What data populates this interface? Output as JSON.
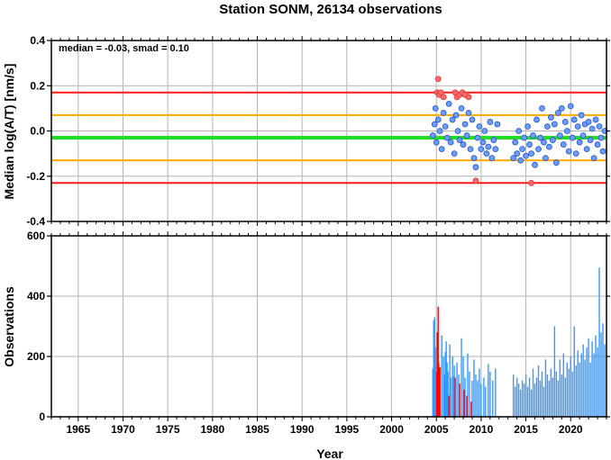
{
  "title": "Station SONM, 26134 observations",
  "xlabel": "Year",
  "x_ticks": [
    "1965",
    "1970",
    "1975",
    "1980",
    "1985",
    "1990",
    "1995",
    "2000",
    "2005",
    "2010",
    "2015",
    "2020"
  ],
  "colors": {
    "red": "#ff1a1a",
    "orange": "#ffaa00",
    "green": "#22dd22",
    "blue_point": "#6b9cff",
    "red_point": "#ff6a6a",
    "blue_bar": "#3399ff",
    "red_bar": "#ff0000"
  },
  "chart_data": [
    {
      "type": "scatter",
      "ylabel": "Median log(A/T) [nm/s]",
      "xlim": [
        1962,
        2024
      ],
      "ylim": [
        -0.4,
        0.4
      ],
      "y_ticks": [
        "0.4",
        "0.2",
        "0.0",
        "-0.2",
        "-0.4"
      ],
      "annotation": "median = -0.03, smad = 0.10",
      "grid": true,
      "hlines": [
        {
          "y": 0.17,
          "color": "red"
        },
        {
          "y": 0.07,
          "color": "orange"
        },
        {
          "y": -0.03,
          "color": "green"
        },
        {
          "y": -0.13,
          "color": "orange"
        },
        {
          "y": -0.23,
          "color": "red"
        }
      ],
      "series": [
        {
          "color": "red",
          "points": [
            [
              2005.1,
              0.17
            ],
            [
              2005.2,
              0.23
            ],
            [
              2005.3,
              0.16
            ],
            [
              2005.5,
              0.17
            ],
            [
              2005.8,
              0.15
            ],
            [
              2007.1,
              0.17
            ],
            [
              2007.3,
              0.15
            ],
            [
              2007.6,
              0.16
            ],
            [
              2007.9,
              0.17
            ],
            [
              2008.2,
              0.16
            ],
            [
              2008.6,
              0.15
            ],
            [
              2009.4,
              -0.22
            ],
            [
              2015.6,
              -0.23
            ]
          ]
        },
        {
          "color": "blue",
          "points": [
            [
              2004.6,
              -0.02
            ],
            [
              2004.8,
              0.03
            ],
            [
              2004.9,
              0.1
            ],
            [
              2005.0,
              -0.05
            ],
            [
              2005.2,
              0.05
            ],
            [
              2005.4,
              0.0
            ],
            [
              2005.6,
              -0.08
            ],
            [
              2005.8,
              0.08
            ],
            [
              2006.0,
              0.02
            ],
            [
              2006.2,
              -0.03
            ],
            [
              2006.4,
              0.12
            ],
            [
              2006.6,
              -0.05
            ],
            [
              2006.8,
              0.05
            ],
            [
              2007.0,
              -0.1
            ],
            [
              2007.2,
              0.07
            ],
            [
              2007.4,
              0.0
            ],
            [
              2007.6,
              -0.04
            ],
            [
              2007.8,
              0.1
            ],
            [
              2008.0,
              -0.06
            ],
            [
              2008.2,
              0.03
            ],
            [
              2008.4,
              -0.02
            ],
            [
              2008.6,
              0.08
            ],
            [
              2008.8,
              -0.08
            ],
            [
              2009.0,
              0.05
            ],
            [
              2009.2,
              -0.12
            ],
            [
              2009.4,
              -0.16
            ],
            [
              2009.6,
              -0.03
            ],
            [
              2009.8,
              0.02
            ],
            [
              2010.0,
              -0.08
            ],
            [
              2010.2,
              -0.05
            ],
            [
              2010.4,
              0.0
            ],
            [
              2010.6,
              -0.1
            ],
            [
              2010.8,
              -0.07
            ],
            [
              2011.0,
              0.04
            ],
            [
              2011.2,
              -0.12
            ],
            [
              2011.4,
              -0.04
            ],
            [
              2011.6,
              -0.08
            ],
            [
              2011.8,
              0.03
            ],
            [
              2013.6,
              -0.12
            ],
            [
              2013.8,
              -0.05
            ],
            [
              2014.0,
              -0.1
            ],
            [
              2014.2,
              0.0
            ],
            [
              2014.4,
              -0.13
            ],
            [
              2014.6,
              -0.08
            ],
            [
              2014.8,
              -0.03
            ],
            [
              2015.0,
              -0.11
            ],
            [
              2015.2,
              0.02
            ],
            [
              2015.4,
              -0.06
            ],
            [
              2015.6,
              -0.1
            ],
            [
              2015.8,
              -0.02
            ],
            [
              2016.0,
              -0.15
            ],
            [
              2016.2,
              0.05
            ],
            [
              2016.4,
              -0.08
            ],
            [
              2016.6,
              -0.03
            ],
            [
              2016.8,
              0.1
            ],
            [
              2017.0,
              -0.05
            ],
            [
              2017.2,
              -0.12
            ],
            [
              2017.4,
              0.02
            ],
            [
              2017.6,
              -0.07
            ],
            [
              2017.8,
              0.06
            ],
            [
              2018.0,
              -0.04
            ],
            [
              2018.2,
              0.03
            ],
            [
              2018.4,
              -0.14
            ],
            [
              2018.6,
              0.08
            ],
            [
              2018.8,
              -0.02
            ],
            [
              2019.0,
              0.1
            ],
            [
              2019.2,
              -0.06
            ],
            [
              2019.4,
              0.04
            ],
            [
              2019.6,
              0.0
            ],
            [
              2019.8,
              -0.09
            ],
            [
              2020.0,
              0.11
            ],
            [
              2020.2,
              -0.03
            ],
            [
              2020.4,
              0.05
            ],
            [
              2020.6,
              -0.1
            ],
            [
              2020.8,
              0.02
            ],
            [
              2021.0,
              -0.05
            ],
            [
              2021.2,
              0.07
            ],
            [
              2021.4,
              -0.02
            ],
            [
              2021.6,
              0.03
            ],
            [
              2021.8,
              -0.08
            ],
            [
              2022.0,
              0.04
            ],
            [
              2022.2,
              -0.04
            ],
            [
              2022.4,
              0.01
            ],
            [
              2022.6,
              -0.12
            ],
            [
              2022.8,
              0.05
            ],
            [
              2023.0,
              -0.06
            ],
            [
              2023.2,
              0.02
            ],
            [
              2023.4,
              -0.03
            ],
            [
              2023.6,
              -0.09
            ],
            [
              2023.8,
              0.0
            ]
          ]
        }
      ]
    },
    {
      "type": "bar",
      "ylabel": "Observations",
      "xlim": [
        1962,
        2024
      ],
      "ylim": [
        0,
        600
      ],
      "y_ticks": [
        "600",
        "400",
        "200",
        "0"
      ],
      "grid": true,
      "series": [
        {
          "color": "blue",
          "bars": [
            [
              2004.6,
              160
            ],
            [
              2004.7,
              320
            ],
            [
              2004.8,
              330
            ],
            [
              2004.9,
              230
            ],
            [
              2005.0,
              150
            ],
            [
              2005.6,
              270
            ],
            [
              2005.8,
              200
            ],
            [
              2005.9,
              140
            ],
            [
              2006.0,
              215
            ],
            [
              2006.1,
              250
            ],
            [
              2006.2,
              180
            ],
            [
              2006.3,
              150
            ],
            [
              2006.5,
              240
            ],
            [
              2006.6,
              130
            ],
            [
              2006.8,
              200
            ],
            [
              2006.9,
              135
            ],
            [
              2007.0,
              170
            ],
            [
              2007.3,
              180
            ],
            [
              2007.5,
              140
            ],
            [
              2007.8,
              260
            ],
            [
              2008.0,
              200
            ],
            [
              2008.2,
              130
            ],
            [
              2008.5,
              210
            ],
            [
              2008.7,
              150
            ],
            [
              2009.0,
              120
            ],
            [
              2009.2,
              190
            ],
            [
              2009.4,
              140
            ],
            [
              2009.6,
              120
            ],
            [
              2009.8,
              160
            ],
            [
              2010.0,
              110
            ],
            [
              2010.3,
              130
            ],
            [
              2010.5,
              100
            ],
            [
              2010.8,
              175
            ],
            [
              2011.0,
              150
            ],
            [
              2011.3,
              120
            ],
            [
              2011.6,
              160
            ],
            [
              2013.6,
              140
            ],
            [
              2013.8,
              100
            ],
            [
              2014.0,
              130
            ],
            [
              2014.2,
              110
            ],
            [
              2014.4,
              90
            ],
            [
              2014.6,
              120
            ],
            [
              2014.8,
              110
            ],
            [
              2015.0,
              140
            ],
            [
              2015.2,
              100
            ],
            [
              2015.4,
              130
            ],
            [
              2015.6,
              90
            ],
            [
              2015.8,
              160
            ],
            [
              2016.0,
              110
            ],
            [
              2016.2,
              130
            ],
            [
              2016.4,
              170
            ],
            [
              2016.6,
              120
            ],
            [
              2016.8,
              150
            ],
            [
              2017.0,
              100
            ],
            [
              2017.2,
              190
            ],
            [
              2017.4,
              140
            ],
            [
              2017.6,
              120
            ],
            [
              2017.8,
              160
            ],
            [
              2018.0,
              130
            ],
            [
              2018.2,
              300
            ],
            [
              2018.4,
              150
            ],
            [
              2018.6,
              120
            ],
            [
              2018.8,
              190
            ],
            [
              2019.0,
              140
            ],
            [
              2019.2,
              210
            ],
            [
              2019.4,
              130
            ],
            [
              2019.6,
              180
            ],
            [
              2019.8,
              160
            ],
            [
              2020.0,
              200
            ],
            [
              2020.2,
              150
            ],
            [
              2020.4,
              300
            ],
            [
              2020.6,
              170
            ],
            [
              2020.8,
              220
            ],
            [
              2021.0,
              180
            ],
            [
              2021.2,
              210
            ],
            [
              2021.4,
              240
            ],
            [
              2021.6,
              190
            ],
            [
              2021.8,
              230
            ],
            [
              2022.0,
              260
            ],
            [
              2022.2,
              180
            ],
            [
              2022.4,
              250
            ],
            [
              2022.6,
              210
            ],
            [
              2022.8,
              270
            ],
            [
              2023.0,
              230
            ],
            [
              2023.2,
              495
            ],
            [
              2023.4,
              280
            ],
            [
              2023.6,
              310
            ],
            [
              2023.8,
              240
            ]
          ]
        },
        {
          "color": "red",
          "bars": [
            [
              2005.05,
              150
            ],
            [
              2005.1,
              280
            ],
            [
              2005.15,
              165
            ],
            [
              2005.2,
              365
            ],
            [
              2005.25,
              180
            ],
            [
              2005.3,
              160
            ],
            [
              2005.4,
              165
            ],
            [
              2006.4,
              70
            ],
            [
              2007.1,
              130
            ],
            [
              2007.6,
              110
            ],
            [
              2008.1,
              90
            ],
            [
              2008.4,
              70
            ],
            [
              2008.9,
              50
            ]
          ]
        }
      ]
    }
  ]
}
